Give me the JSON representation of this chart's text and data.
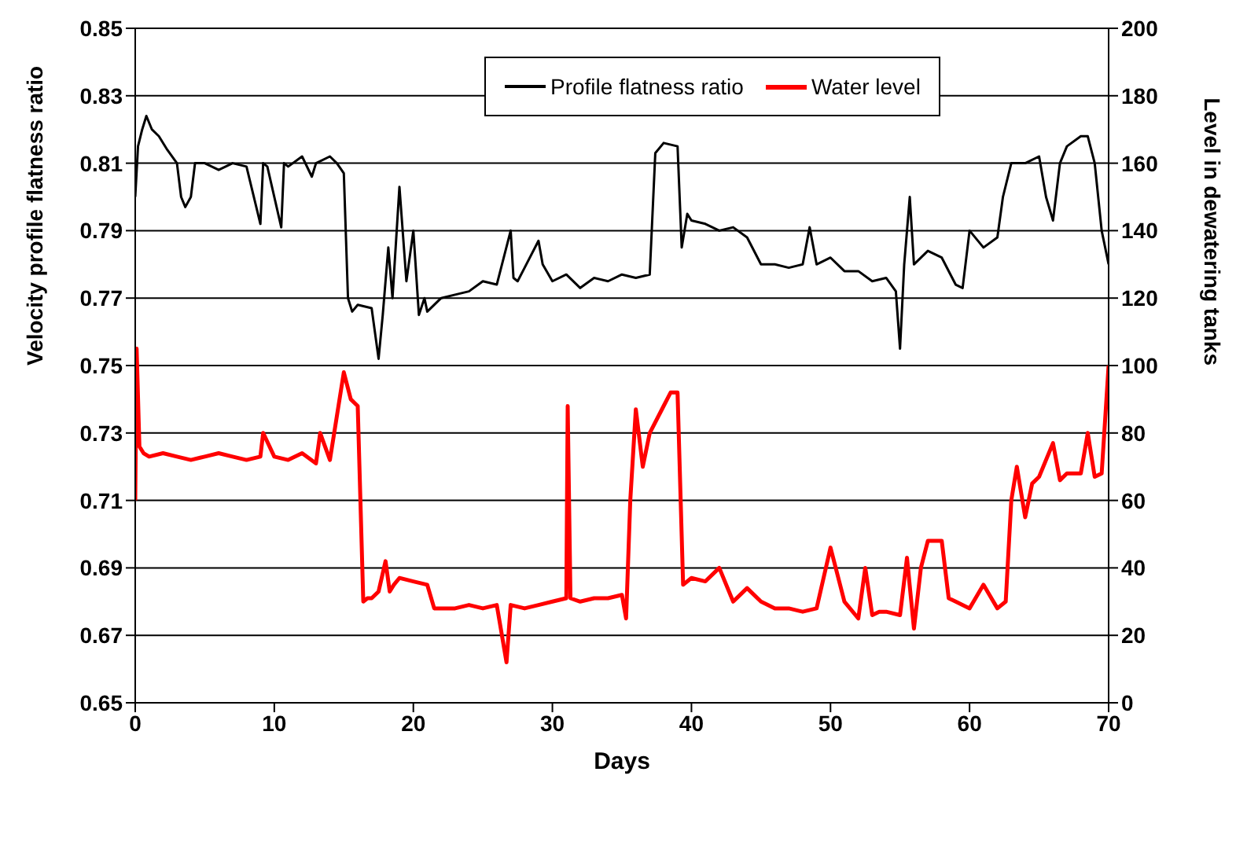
{
  "chart_data": {
    "type": "line",
    "xlabel": "Days",
    "ylabel": "Velocity profile flatness ratio",
    "y2label": "Level in dewatering tanks",
    "xlim": [
      0,
      70
    ],
    "xticks": [
      0,
      10,
      20,
      30,
      40,
      50,
      60,
      70
    ],
    "ylim": [
      0.65,
      0.85
    ],
    "yticks": [
      0.65,
      0.67,
      0.69,
      0.71,
      0.73,
      0.75,
      0.77,
      0.79,
      0.81,
      0.83,
      0.85
    ],
    "y2lim": [
      0,
      200
    ],
    "y2ticks": [
      0,
      20,
      40,
      60,
      80,
      100,
      120,
      140,
      160,
      180,
      200
    ],
    "grid": "y",
    "legend": "top",
    "marker": "none",
    "line_style": "solid",
    "series": [
      {
        "name": "Profile flatness ratio",
        "color": "#000000",
        "x": [
          0,
          0.2,
          0.5,
          0.8,
          1.2,
          1.7,
          2.3,
          3,
          3.3,
          3.6,
          4,
          4.3,
          5,
          6,
          7,
          8,
          9,
          9.2,
          9.5,
          10.5,
          10.7,
          11,
          12,
          12.7,
          13,
          14,
          14.5,
          15,
          15.3,
          15.6,
          16,
          17,
          17.5,
          17.8,
          18.2,
          18.5,
          19,
          19.5,
          20,
          20.4,
          20.8,
          21,
          22,
          23,
          24,
          25,
          26,
          27,
          27.2,
          27.5,
          28,
          29,
          29.3,
          30,
          31,
          32,
          33,
          34,
          35,
          36,
          37,
          37.4,
          38,
          39,
          39.3,
          39.7,
          40,
          41,
          42,
          43,
          44,
          45,
          46,
          47,
          48,
          48.5,
          49,
          50,
          51,
          52,
          53,
          54,
          54.7,
          55,
          55.3,
          55.7,
          56,
          57,
          58,
          59,
          59.5,
          60,
          61,
          62,
          62.4,
          63,
          64,
          65,
          65.5,
          66,
          66.5,
          67,
          68,
          68.5,
          69,
          69.5,
          70
        ],
        "values": [
          0.8,
          0.815,
          0.82,
          0.824,
          0.82,
          0.818,
          0.814,
          0.81,
          0.8,
          0.797,
          0.8,
          0.81,
          0.81,
          0.808,
          0.81,
          0.809,
          0.792,
          0.81,
          0.809,
          0.791,
          0.81,
          0.809,
          0.812,
          0.806,
          0.81,
          0.812,
          0.81,
          0.807,
          0.77,
          0.766,
          0.768,
          0.767,
          0.752,
          0.765,
          0.785,
          0.77,
          0.803,
          0.775,
          0.79,
          0.765,
          0.77,
          0.766,
          0.77,
          0.771,
          0.772,
          0.775,
          0.774,
          0.79,
          0.776,
          0.775,
          0.779,
          0.787,
          0.78,
          0.775,
          0.777,
          0.773,
          0.776,
          0.775,
          0.777,
          0.776,
          0.777,
          0.813,
          0.816,
          0.815,
          0.785,
          0.795,
          0.793,
          0.792,
          0.79,
          0.791,
          0.788,
          0.78,
          0.78,
          0.779,
          0.78,
          0.791,
          0.78,
          0.782,
          0.778,
          0.778,
          0.775,
          0.776,
          0.772,
          0.755,
          0.78,
          0.8,
          0.78,
          0.784,
          0.782,
          0.774,
          0.773,
          0.79,
          0.785,
          0.788,
          0.8,
          0.81,
          0.81,
          0.812,
          0.8,
          0.793,
          0.81,
          0.815,
          0.818,
          0.818,
          0.81,
          0.79,
          0.78
        ]
      },
      {
        "name": "Water level",
        "color": "#ff0000",
        "axis": "y2",
        "x": [
          0,
          0.1,
          0.3,
          0.6,
          1,
          2,
          3,
          4,
          5,
          6,
          7,
          8,
          9,
          9.2,
          10,
          11,
          12,
          13,
          13.3,
          14,
          14.5,
          15,
          15.5,
          16,
          16.4,
          16.7,
          17,
          17.5,
          18,
          18.3,
          18.6,
          19,
          20,
          21,
          21.5,
          22,
          23,
          24,
          25,
          26,
          26.7,
          27,
          28,
          29,
          30,
          31,
          31.1,
          31.3,
          32,
          33,
          34,
          35,
          35.3,
          35.6,
          36,
          36.5,
          37,
          38,
          38.5,
          39,
          39.4,
          40,
          41,
          42,
          43,
          44,
          45,
          46,
          47,
          48,
          49,
          49.5,
          50,
          51,
          52,
          52.5,
          53,
          53.5,
          54,
          55,
          55.5,
          56,
          56.5,
          57,
          58,
          58.5,
          59,
          60,
          61,
          62,
          62.6,
          63,
          63.4,
          64,
          64.5,
          65,
          66,
          66.5,
          67,
          68,
          68.5,
          69,
          69.5,
          70
        ],
        "values": [
          60,
          105,
          76,
          74,
          73,
          74,
          73,
          72,
          73,
          74,
          73,
          72,
          73,
          80,
          73,
          72,
          74,
          71,
          80,
          72,
          85,
          98,
          90,
          88,
          30,
          31,
          31,
          33,
          42,
          33,
          35,
          37,
          36,
          35,
          28,
          28,
          28,
          29,
          28,
          29,
          12,
          29,
          28,
          29,
          30,
          31,
          88,
          31,
          30,
          31,
          31,
          32,
          25,
          60,
          87,
          70,
          80,
          88,
          92,
          92,
          35,
          37,
          36,
          40,
          30,
          34,
          30,
          28,
          28,
          27,
          28,
          37,
          46,
          30,
          25,
          40,
          26,
          27,
          27,
          26,
          43,
          22,
          40,
          48,
          48,
          31,
          30,
          28,
          35,
          28,
          30,
          60,
          70,
          55,
          65,
          67,
          77,
          66,
          68,
          68,
          80,
          67,
          68,
          100
        ]
      }
    ]
  }
}
